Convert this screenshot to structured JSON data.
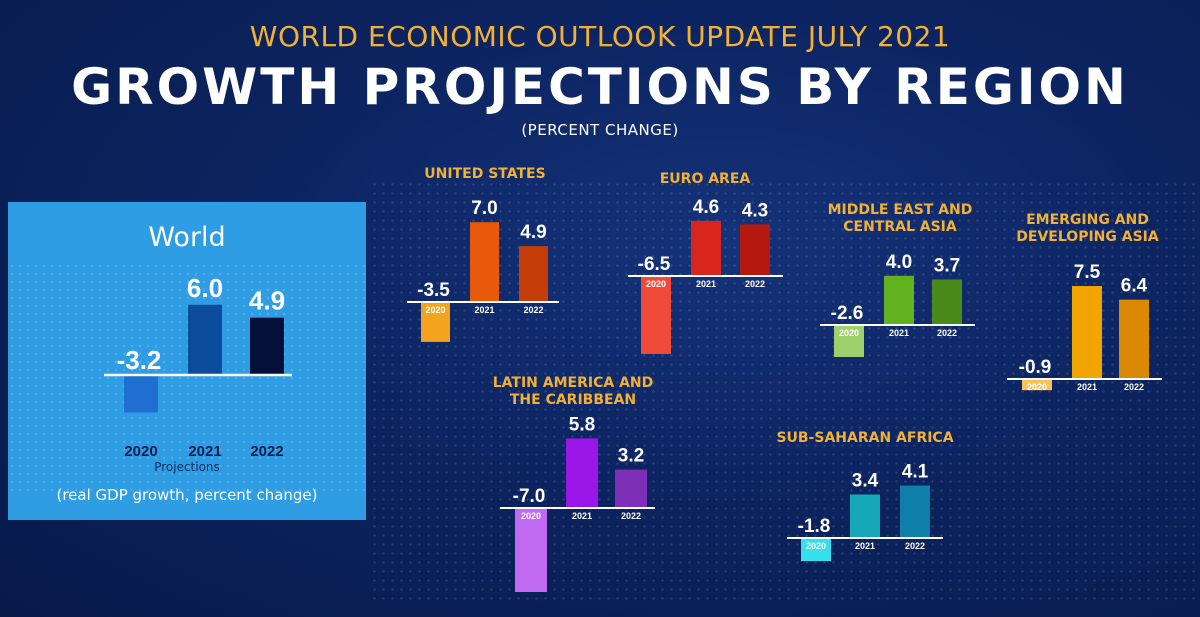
{
  "header": {
    "supertitle": "WORLD ECONOMIC OUTLOOK UPDATE JULY 2021",
    "title": "GROWTH PROJECTIONS BY REGION",
    "subtitle": "(PERCENT CHANGE)"
  },
  "world_panel": {
    "title": "World",
    "projections_note": "Projections",
    "note": "(real GDP growth, percent change)"
  },
  "chart_data": [
    {
      "id": "world",
      "type": "bar",
      "title": "World",
      "categories": [
        "2020",
        "2021",
        "2022"
      ],
      "values": [
        -3.2,
        6.0,
        4.9
      ],
      "labels": [
        "-3.2",
        "6.0",
        "4.9"
      ],
      "colors": [
        "#1f6fd1",
        "#0b4c9c",
        "#05103a"
      ]
    },
    {
      "id": "us",
      "type": "bar",
      "title": "UNITED STATES",
      "categories": [
        "2020",
        "2021",
        "2022"
      ],
      "values": [
        -3.5,
        7.0,
        4.9
      ],
      "labels": [
        "-3.5",
        "7.0",
        "4.9"
      ],
      "colors": [
        "#f4a31c",
        "#e8590c",
        "#c53e0a"
      ]
    },
    {
      "id": "euro",
      "type": "bar",
      "title": "EURO AREA",
      "categories": [
        "2020",
        "2021",
        "2022"
      ],
      "values": [
        -6.5,
        4.6,
        4.3
      ],
      "labels": [
        "-6.5",
        "4.6",
        "4.3"
      ],
      "colors": [
        "#f04a3a",
        "#d9251c",
        "#b5180f"
      ]
    },
    {
      "id": "mec",
      "type": "bar",
      "title": "MIDDLE EAST AND CENTRAL ASIA",
      "categories": [
        "2020",
        "2021",
        "2022"
      ],
      "values": [
        -2.6,
        4.0,
        3.7
      ],
      "labels": [
        "-2.6",
        "4.0",
        "3.7"
      ],
      "colors": [
        "#9ed06b",
        "#62b21f",
        "#4a8a1a"
      ]
    },
    {
      "id": "eda",
      "type": "bar",
      "title": "EMERGING AND DEVELOPING ASIA",
      "categories": [
        "2020",
        "2021",
        "2022"
      ],
      "values": [
        -0.9,
        7.5,
        6.4
      ],
      "labels": [
        "-0.9",
        "7.5",
        "6.4"
      ],
      "colors": [
        "#f7c35c",
        "#f0a500",
        "#d98a00"
      ]
    },
    {
      "id": "lac",
      "type": "bar",
      "title": "LATIN AMERICA AND THE CARIBBEAN",
      "categories": [
        "2020",
        "2021",
        "2022"
      ],
      "values": [
        -7.0,
        5.8,
        3.2
      ],
      "labels": [
        "-7.0",
        "5.8",
        "3.2"
      ],
      "colors": [
        "#c06af2",
        "#9b16e8",
        "#7d2fb8"
      ]
    },
    {
      "id": "ssa",
      "type": "bar",
      "title": "SUB-SAHARAN AFRICA",
      "categories": [
        "2020",
        "2021",
        "2022"
      ],
      "values": [
        -1.8,
        3.4,
        4.1
      ],
      "labels": [
        "-1.8",
        "3.4",
        "4.1"
      ],
      "colors": [
        "#35e0ee",
        "#14a8b8",
        "#0d7fa8"
      ]
    }
  ]
}
